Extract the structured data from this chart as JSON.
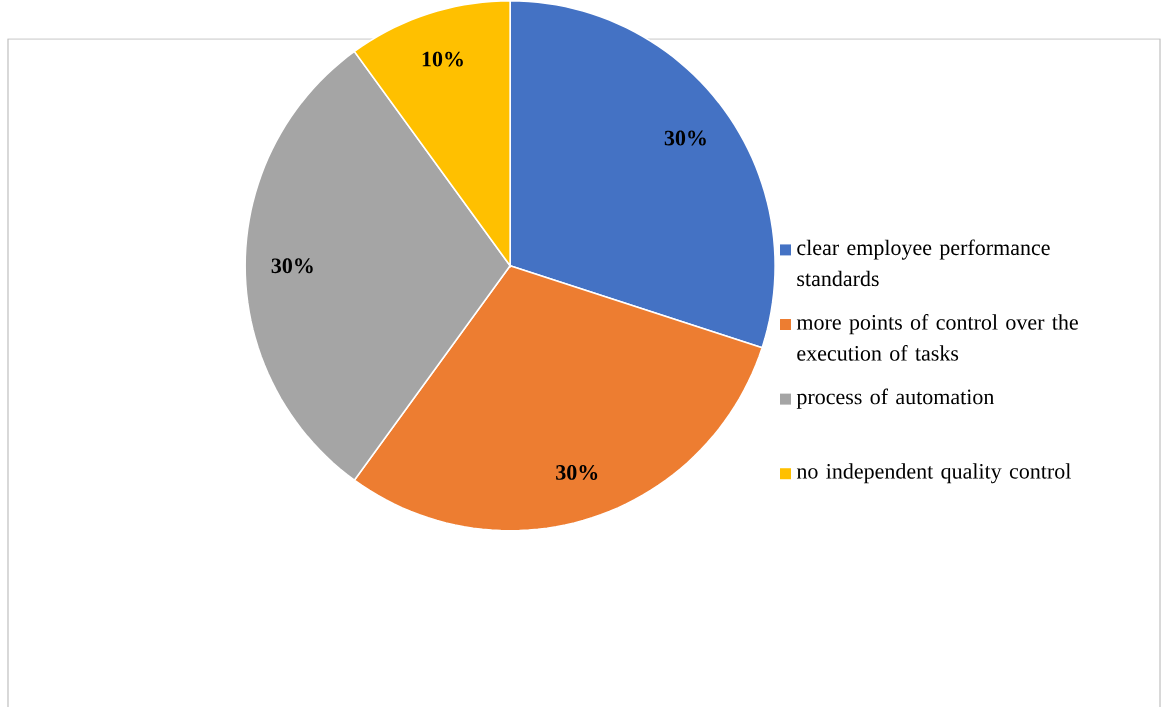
{
  "chart_data": {
    "type": "pie",
    "categories": [
      "clear employee performance standards",
      "more points of control over the execution of tasks",
      "process of automation",
      "no independent quality control"
    ],
    "values": [
      30,
      30,
      30,
      10
    ],
    "colors": [
      "#4472c4",
      "#ed7d31",
      "#a5a5a5",
      "#ffc000"
    ],
    "value_labels": [
      "30%",
      "30%",
      "30%",
      "10%"
    ],
    "legend": "right"
  }
}
